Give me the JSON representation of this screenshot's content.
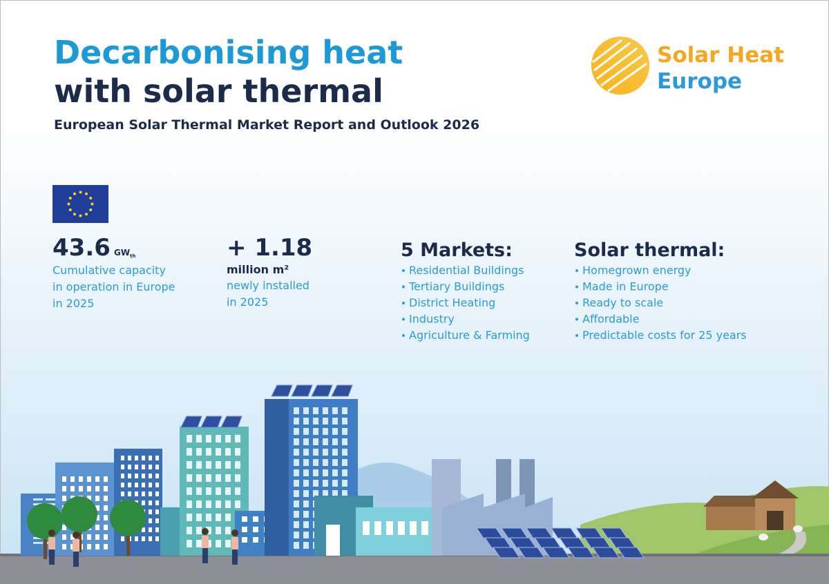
{
  "header": {
    "title": [
      "Decarbonising heat",
      "with solar thermal"
    ],
    "subtitle": "European Solar Thermal Market Report and Outlook 2026"
  },
  "logo": {
    "lines": [
      "Solar Heat",
      "Europe"
    ]
  },
  "stats": [
    {
      "value": "43.6",
      "unit": "GW",
      "unit_sub": "th",
      "lines": [
        "Cumulative capacity",
        "in operation in Europe",
        "in 2025"
      ]
    },
    {
      "value": "+ 1.18",
      "unit": "million m²",
      "lines": [
        "newly installed",
        "in 2025"
      ]
    }
  ],
  "lists": [
    {
      "heading": "5 Markets:",
      "items": [
        "Residential Buildings",
        "Tertiary Buildings",
        "District Heating",
        "Industry",
        "Agriculture & Farming"
      ]
    },
    {
      "heading": "Solar thermal:",
      "items": [
        "Homegrown energy",
        "Made in Europe",
        "Ready to scale",
        "Affordable",
        "Predictable costs for 25 years"
      ]
    }
  ]
}
